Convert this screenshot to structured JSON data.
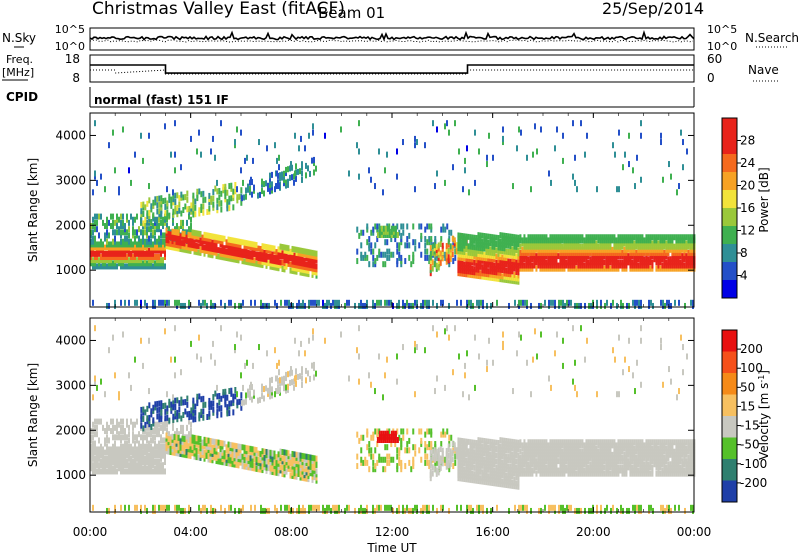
{
  "header": {
    "title": "Christmas Valley East (fitACF)",
    "beam": "Beam 01",
    "date": "25/Sep/2014"
  },
  "top_panels": {
    "nsky_label": "N.Sky",
    "nsearch_label": "N.Search",
    "nsky_ticks": [
      "10^5",
      "10^0"
    ],
    "nsearch_ticks": [
      "10^5",
      "10^0"
    ],
    "freq_label": "Freq.",
    "freq_unit": "[MHz]",
    "freq_ticks": [
      "18",
      "8"
    ],
    "nave_label": "Nave",
    "nave_ticks": [
      "60",
      "0"
    ],
    "cpid_label": "CPID",
    "cpid_value": "normal (fast) 151 IF"
  },
  "x_axis": {
    "label": "Time UT",
    "ticks": [
      "00:00",
      "04:00",
      "08:00",
      "12:00",
      "16:00",
      "20:00",
      "00:00"
    ]
  },
  "chart_data": [
    {
      "type": "heatmap",
      "quantity": "Power",
      "colorbar_label": "Power [dB]",
      "colorbar_ticks": [
        "28",
        "24",
        "20",
        "16",
        "12",
        "8",
        "4"
      ],
      "colorbar_colors": [
        "#0000e6",
        "#2450c8",
        "#2f8f96",
        "#3fb050",
        "#9ac83a",
        "#f2e33a",
        "#f7a224",
        "#f56a1e",
        "#e8231b",
        "#e8231b"
      ],
      "ylabel": "Slant Range [km]",
      "yticks": [
        "4000",
        "3000",
        "2000",
        "1000"
      ],
      "ylim": [
        180,
        4500
      ],
      "xlim_hours": [
        0,
        24
      ],
      "features": [
        {
          "band": "main echo",
          "t_start": 0,
          "t_end": 9,
          "range_km": [
            800,
            1800
          ],
          "power_db": [
            8,
            30
          ]
        },
        {
          "band": "main echo",
          "t_start": 14.5,
          "t_end": 24,
          "range_km": [
            900,
            1900
          ],
          "power_db": [
            8,
            30
          ]
        },
        {
          "band": "near range",
          "t_start": 0,
          "t_end": 24,
          "range_km": [
            200,
            400
          ],
          "power_db": [
            4,
            12
          ]
        }
      ]
    },
    {
      "type": "heatmap",
      "quantity": "Velocity",
      "colorbar_label": "Velocity [m s^-1]",
      "colorbar_ticks": [
        "200",
        "100",
        "50",
        "15",
        "-15",
        "-50",
        "-100",
        "-200"
      ],
      "colorbar_colors": [
        "#1f3fa8",
        "#2f7f6f",
        "#55c02a",
        "#c8c8c0",
        "#f7c060",
        "#f58a18",
        "#f5501a",
        "#e81010"
      ],
      "ylabel": "Slant Range [km]",
      "yticks": [
        "4000",
        "3000",
        "2000",
        "1000"
      ],
      "ylim": [
        180,
        4500
      ],
      "xlim_hours": [
        0,
        24
      ]
    },
    {
      "type": "line",
      "quantity": "N.Sky / N.Search",
      "y_scale": "log",
      "ylim": [
        1,
        100000
      ]
    },
    {
      "type": "line",
      "quantity": "Freq / Nave",
      "freq_mhz": {
        "x_hours": [
          0,
          3,
          3,
          15,
          15,
          24
        ],
        "y": [
          14.5,
          14.5,
          11,
          11,
          14.5,
          14.5
        ]
      },
      "freq_ylim": [
        8,
        18
      ],
      "nave_ylim": [
        0,
        60
      ]
    }
  ]
}
